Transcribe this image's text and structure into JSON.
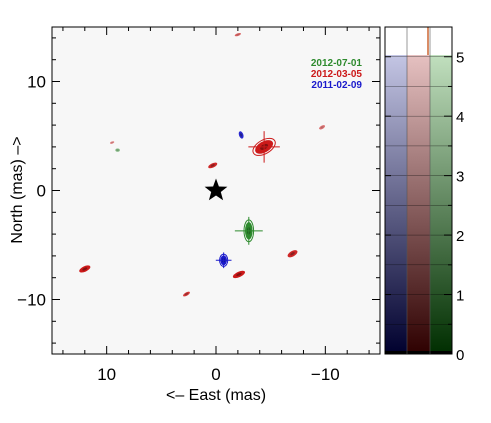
{
  "chart_data": {
    "type": "scatter",
    "xlabel": "<–  East (mas)",
    "ylabel": "North (mas)  –>",
    "xlim": [
      15,
      -15
    ],
    "ylim": [
      -15,
      15
    ],
    "x_ticks": [
      10,
      0,
      -10
    ],
    "y_ticks": [
      10,
      0,
      -10
    ],
    "x_tick_labels": [
      "10",
      "0",
      "−10"
    ],
    "y_tick_labels": [
      "10",
      "0",
      "−10"
    ],
    "legend_placement": "top-right",
    "series": [
      {
        "name": "2012-07-01",
        "color": "#2e8b2e",
        "sources": [
          {
            "x": -3.0,
            "y": -3.7,
            "rx": 0.35,
            "ry": 0.8,
            "angle": 0,
            "err": true,
            "strength": 1.0
          },
          {
            "x": 9.0,
            "y": 3.7,
            "rx": 0.2,
            "ry": 0.15,
            "angle": 0,
            "err": false,
            "strength": 0.4
          }
        ]
      },
      {
        "name": "2012-03-05",
        "color": "#cc1a1a",
        "sources": [
          {
            "x": -4.4,
            "y": 4.0,
            "rx": 0.9,
            "ry": 0.5,
            "angle": -30,
            "err": true,
            "strength": 1.0
          },
          {
            "x": 0.3,
            "y": 2.3,
            "rx": 0.45,
            "ry": 0.2,
            "angle": -25,
            "err": false,
            "strength": 0.9
          },
          {
            "x": -2.1,
            "y": -7.7,
            "rx": 0.6,
            "ry": 0.25,
            "angle": -25,
            "err": false,
            "strength": 1.0
          },
          {
            "x": -7.0,
            "y": -5.8,
            "rx": 0.5,
            "ry": 0.25,
            "angle": -30,
            "err": false,
            "strength": 0.9
          },
          {
            "x": 12.0,
            "y": -7.2,
            "rx": 0.55,
            "ry": 0.25,
            "angle": -25,
            "err": false,
            "strength": 1.0
          },
          {
            "x": 2.7,
            "y": -9.5,
            "rx": 0.35,
            "ry": 0.15,
            "angle": -30,
            "err": false,
            "strength": 0.8
          },
          {
            "x": -9.7,
            "y": 5.8,
            "rx": 0.3,
            "ry": 0.15,
            "angle": -30,
            "err": false,
            "strength": 0.4
          },
          {
            "x": -2.0,
            "y": 14.3,
            "rx": 0.3,
            "ry": 0.12,
            "angle": -20,
            "err": false,
            "strength": 0.5
          },
          {
            "x": 9.5,
            "y": 4.4,
            "rx": 0.2,
            "ry": 0.1,
            "angle": -20,
            "err": false,
            "strength": 0.3
          }
        ]
      },
      {
        "name": "2011-02-09",
        "color": "#1a1acc",
        "sources": [
          {
            "x": -0.7,
            "y": -6.4,
            "rx": 0.3,
            "ry": 0.45,
            "angle": 0,
            "err": true,
            "strength": 1.0
          },
          {
            "x": -2.3,
            "y": 5.1,
            "rx": 0.2,
            "ry": 0.35,
            "angle": -20,
            "err": false,
            "strength": 0.9
          }
        ]
      }
    ],
    "star": {
      "x": 0,
      "y": 0
    },
    "colorbar": {
      "ticks": [
        0,
        1,
        2,
        3,
        4,
        5
      ],
      "tick_labels": [
        "0",
        "1",
        "2",
        "3",
        "4",
        "5"
      ],
      "range": [
        0,
        5.5
      ]
    }
  }
}
